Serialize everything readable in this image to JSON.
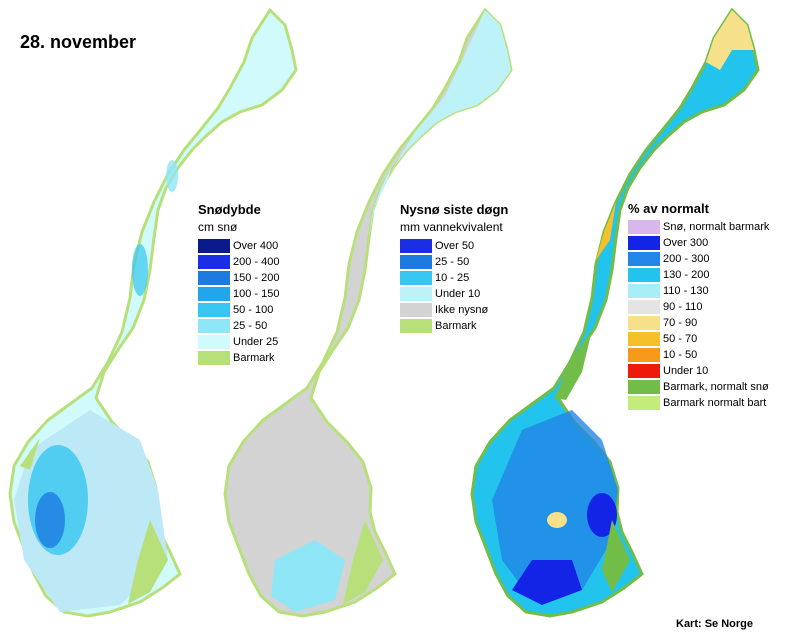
{
  "date_label": "28. november",
  "credit": "Kart: Se Norge",
  "colors": {
    "background": "#ffffff",
    "no_data": "#d3d3d3"
  },
  "legends": [
    {
      "title": "Snødybde",
      "subtitle": "cm snø",
      "items": [
        {
          "label": "Over 400",
          "color": "#0a1a8c"
        },
        {
          "label": "200 - 400",
          "color": "#1a2ee6"
        },
        {
          "label": "150 - 200",
          "color": "#1c7be0"
        },
        {
          "label": "100 - 150",
          "color": "#21a6ee"
        },
        {
          "label": "50 - 100",
          "color": "#36c6f1"
        },
        {
          "label": "25 - 50",
          "color": "#8ee6f6"
        },
        {
          "label": "Under 25",
          "color": "#d0fafc"
        },
        {
          "label": "Barmark",
          "color": "#b8e07a"
        }
      ]
    },
    {
      "title": "Nysnø siste døgn",
      "subtitle": "mm vannekvivalent",
      "items": [
        {
          "label": "Over 50",
          "color": "#1a2ee6"
        },
        {
          "label": "25 - 50",
          "color": "#1c7be0"
        },
        {
          "label": "10 - 25",
          "color": "#36c6f1"
        },
        {
          "label": "Under 10",
          "color": "#bdf2f8"
        },
        {
          "label": "Ikke nysnø",
          "color": "#d3d3d3"
        },
        {
          "label": "Barmark",
          "color": "#b8e07a"
        }
      ]
    },
    {
      "title": "% av normalt",
      "subtitle": "",
      "items": [
        {
          "label": "Snø, normalt barmark",
          "color": "#d8b8ec"
        },
        {
          "label": "Over 300",
          "color": "#1424e6"
        },
        {
          "label": "200 - 300",
          "color": "#2286e6"
        },
        {
          "label": "130 - 200",
          "color": "#22c4ee"
        },
        {
          "label": "110 - 130",
          "color": "#a8eef6"
        },
        {
          "label": "90 - 110",
          "color": "#e4e4e4"
        },
        {
          "label": "70 - 90",
          "color": "#f6e08a"
        },
        {
          "label": "50 - 70",
          "color": "#f6c02a"
        },
        {
          "label": "10 - 50",
          "color": "#f69a1a"
        },
        {
          "label": "Under 10",
          "color": "#f01a0a"
        },
        {
          "label": "Barmark, normalt snø",
          "color": "#72bc48"
        },
        {
          "label": "Barmark normalt bart",
          "color": "#c4ec7a"
        }
      ]
    }
  ]
}
